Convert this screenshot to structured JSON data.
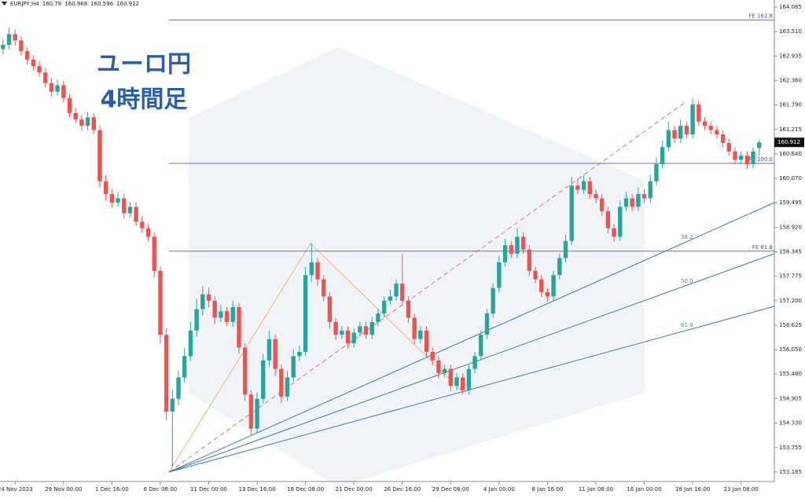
{
  "chart_data": {
    "type": "candlestick",
    "symbol": "EURJPY,H4",
    "title_lines": [
      "ユーロ円",
      "4時間足"
    ],
    "up_color": "#26a69a",
    "down_color": "#ef5350",
    "ylim": [
      152.96,
      164.25
    ],
    "yticks": [
      164.085,
      {
        "value": 163.51,
        "label": "163.510"
      },
      162.935,
      {
        "value": 162.36,
        "label": "162.360"
      },
      {
        "value": 161.79,
        "label": "161.790"
      },
      161.215,
      {
        "value": 160.64,
        "label": "160.640"
      },
      {
        "value": 160.07,
        "label": "160.070"
      },
      159.495,
      {
        "value": 158.92,
        "label": "158.920"
      },
      158.345,
      157.775,
      {
        "value": 157.2,
        "label": "157.200"
      },
      156.625,
      {
        "value": 156.05,
        "label": "156.050"
      },
      {
        "value": 155.48,
        "label": "155.480"
      },
      154.905,
      {
        "value": 154.33,
        "label": "154.330"
      },
      153.755,
      153.185
    ],
    "xticks": [
      {
        "value": 2,
        "label": "24 Nov 2023"
      },
      {
        "value": 10,
        "label": "29 Nov 00:00"
      },
      {
        "value": 18,
        "label": "1 Dec 16:00"
      },
      {
        "value": 26,
        "label": "6 Dec 08:00"
      },
      {
        "value": 34,
        "label": "11 Dec 00:00"
      },
      {
        "value": 42,
        "label": "13 Dec 16:00"
      },
      {
        "value": 50,
        "label": "18 Dec 08:00"
      },
      {
        "value": 58,
        "label": "21 Dec 00:00"
      },
      {
        "value": 66,
        "label": "26 Dec 16:00"
      },
      {
        "value": 74,
        "label": "29 Dec 08:00"
      },
      {
        "value": 82,
        "label": "4 Jan 00:00"
      },
      {
        "value": 90,
        "label": "8 Jan 16:00"
      },
      {
        "value": 98,
        "label": "11 Jan 08:00"
      },
      {
        "value": 106,
        "label": "16 Jan 00:00"
      },
      {
        "value": 114,
        "label": "18 Jan 16:00"
      },
      {
        "value": 122,
        "label": "23 Jan 08:00"
      }
    ],
    "levels": [
      {
        "label": "FE 161.8",
        "value": 163.78
      },
      {
        "label": "FE 100.0",
        "value": 160.42
      },
      {
        "label": "FE 61.8",
        "value": 158.36
      }
    ],
    "fan_labels": [
      "38.2",
      "50.0",
      "61.8"
    ],
    "open": [
      163.1,
      163.2,
      163.45,
      163.3,
      163.05,
      162.85,
      162.7,
      162.55,
      162.3,
      162.1,
      162.25,
      161.95,
      161.6,
      161.45,
      161.3,
      161.5,
      161.2,
      160.0,
      159.7,
      159.5,
      159.6,
      159.25,
      159.4,
      159.05,
      158.9,
      158.7,
      157.9,
      156.4,
      154.6,
      154.9,
      155.4,
      155.9,
      156.5,
      157.0,
      157.35,
      157.2,
      156.8,
      156.95,
      156.7,
      157.05,
      156.1,
      155.0,
      154.2,
      154.9,
      155.8,
      156.3,
      155.6,
      154.95,
      155.4,
      155.9,
      156.0,
      157.8,
      158.1,
      157.7,
      157.3,
      156.7,
      156.4,
      156.5,
      156.2,
      156.45,
      156.6,
      156.4,
      156.7,
      156.9,
      157.2,
      157.3,
      157.6,
      157.2,
      156.8,
      156.3,
      156.5,
      156.0,
      155.8,
      155.5,
      155.6,
      155.2,
      155.4,
      155.1,
      155.6,
      155.9,
      156.4,
      156.9,
      157.5,
      158.1,
      158.5,
      158.3,
      158.7,
      158.4,
      157.9,
      157.7,
      157.4,
      157.3,
      157.8,
      158.2,
      158.6,
      159.9,
      159.8,
      160.0,
      159.7,
      159.6,
      159.3,
      158.9,
      158.7,
      159.4,
      159.6,
      159.4,
      159.7,
      159.6,
      160.0,
      160.4,
      160.8,
      161.2,
      161.0,
      161.3,
      161.1,
      161.8,
      161.4,
      161.3,
      161.2,
      161.1,
      160.9,
      160.7,
      160.5,
      160.6,
      160.4,
      160.78
    ],
    "high": [
      163.32,
      163.6,
      163.55,
      163.4,
      163.15,
      162.95,
      162.82,
      162.65,
      162.42,
      162.38,
      162.35,
      162.05,
      161.72,
      161.55,
      161.62,
      161.6,
      161.3,
      160.15,
      159.82,
      159.75,
      159.7,
      159.52,
      159.5,
      159.18,
      159.0,
      158.8,
      158.0,
      156.55,
      155.1,
      155.55,
      156.1,
      156.7,
      157.25,
      157.55,
      157.5,
      157.3,
      157.1,
      157.05,
      157.2,
      157.15,
      156.2,
      155.1,
      155.05,
      155.95,
      156.5,
      156.4,
      155.7,
      155.55,
      156.05,
      156.15,
      158.0,
      158.55,
      158.2,
      157.8,
      157.4,
      156.8,
      156.6,
      156.6,
      156.55,
      156.7,
      156.7,
      156.82,
      157.0,
      157.3,
      157.45,
      157.7,
      158.3,
      157.3,
      156.9,
      156.6,
      156.6,
      156.1,
      155.9,
      155.7,
      155.7,
      155.5,
      155.5,
      155.7,
      156.0,
      156.5,
      157.0,
      157.6,
      158.25,
      158.65,
      158.6,
      158.9,
      158.8,
      158.5,
      158.0,
      157.8,
      157.5,
      157.9,
      158.3,
      158.75,
      160.1,
      160.05,
      160.15,
      160.1,
      159.8,
      159.7,
      159.4,
      159.0,
      159.55,
      159.75,
      159.7,
      159.85,
      159.8,
      160.15,
      160.55,
      160.95,
      161.4,
      161.3,
      161.45,
      161.4,
      161.95,
      161.9,
      161.5,
      161.4,
      161.3,
      161.2,
      161.0,
      160.8,
      160.7,
      160.7,
      160.8,
      160.968
    ],
    "low": [
      162.98,
      163.1,
      163.18,
      162.95,
      162.75,
      162.6,
      162.45,
      162.2,
      161.98,
      162.0,
      161.85,
      161.5,
      161.35,
      161.18,
      161.2,
      161.1,
      159.85,
      159.55,
      159.38,
      159.4,
      159.12,
      159.15,
      158.95,
      158.78,
      158.58,
      157.75,
      156.2,
      154.4,
      153.3,
      154.75,
      155.28,
      155.78,
      156.35,
      156.85,
      157.05,
      156.65,
      156.7,
      156.6,
      156.58,
      155.95,
      154.85,
      154.05,
      154.1,
      154.78,
      155.65,
      155.45,
      154.8,
      154.85,
      155.3,
      155.78,
      155.9,
      157.65,
      157.55,
      157.18,
      156.55,
      156.28,
      156.3,
      156.08,
      156.1,
      156.35,
      156.3,
      156.3,
      156.6,
      156.8,
      157.1,
      157.2,
      157.08,
      156.68,
      156.18,
      156.2,
      155.88,
      155.68,
      155.38,
      155.4,
      155.08,
      155.1,
      155.0,
      155.0,
      155.5,
      155.8,
      156.3,
      156.8,
      157.4,
      158.0,
      158.2,
      158.2,
      158.3,
      157.78,
      157.6,
      157.28,
      157.18,
      157.2,
      157.7,
      158.1,
      158.5,
      159.7,
      159.7,
      159.58,
      159.48,
      159.18,
      158.78,
      158.58,
      158.6,
      159.3,
      159.3,
      159.3,
      159.5,
      159.5,
      159.9,
      160.3,
      160.7,
      160.9,
      160.9,
      161.0,
      161.0,
      161.3,
      161.2,
      161.1,
      161.0,
      160.8,
      160.6,
      160.4,
      160.4,
      160.28,
      160.3,
      160.596
    ],
    "close": [
      163.2,
      163.45,
      163.3,
      163.05,
      162.85,
      162.7,
      162.55,
      162.3,
      162.1,
      162.25,
      161.95,
      161.6,
      161.45,
      161.3,
      161.5,
      161.2,
      160.0,
      159.7,
      159.5,
      159.6,
      159.25,
      159.4,
      159.05,
      158.9,
      158.7,
      157.9,
      156.4,
      154.6,
      154.9,
      155.4,
      155.9,
      156.5,
      157.0,
      157.35,
      157.2,
      156.8,
      156.95,
      156.7,
      157.05,
      156.1,
      155.0,
      154.2,
      154.9,
      155.8,
      156.3,
      155.6,
      154.95,
      155.4,
      155.9,
      156.0,
      157.8,
      158.1,
      157.7,
      157.3,
      156.7,
      156.4,
      156.5,
      156.2,
      156.45,
      156.6,
      156.4,
      156.7,
      156.9,
      157.2,
      157.3,
      157.6,
      157.2,
      156.8,
      156.3,
      156.5,
      156.0,
      155.8,
      155.5,
      155.6,
      155.2,
      155.4,
      155.1,
      155.6,
      155.9,
      156.4,
      156.9,
      157.5,
      158.1,
      158.5,
      158.3,
      158.7,
      158.4,
      157.9,
      157.7,
      157.4,
      157.3,
      157.8,
      158.2,
      158.6,
      159.9,
      159.8,
      160.0,
      159.7,
      159.6,
      159.3,
      158.9,
      158.7,
      159.4,
      159.6,
      159.4,
      159.7,
      159.6,
      160.0,
      160.4,
      160.8,
      161.2,
      161.0,
      161.3,
      161.1,
      161.8,
      161.4,
      161.3,
      161.2,
      161.1,
      160.9,
      160.7,
      160.5,
      160.6,
      160.4,
      160.7,
      160.912
    ]
  }
}
